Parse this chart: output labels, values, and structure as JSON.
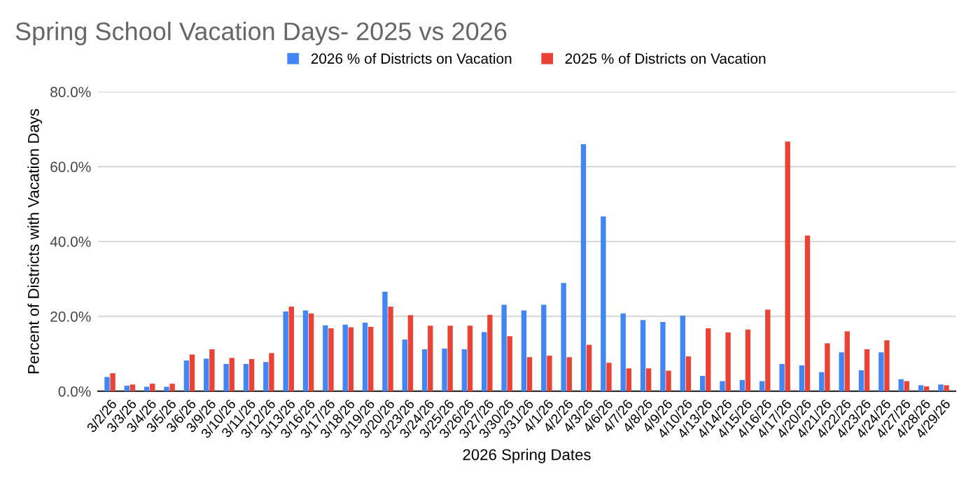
{
  "chart_data": {
    "type": "bar",
    "title": "Spring School Vacation Days- 2025 vs 2026",
    "xlabel": "2026 Spring Dates",
    "ylabel": "Percent of Districts with Vacation Days",
    "categories": [
      "3/2/26",
      "3/3/26",
      "3/4/26",
      "3/5/26",
      "3/6/26",
      "3/9/26",
      "3/10/26",
      "3/11/26",
      "3/12/26",
      "3/13/26",
      "3/16/26",
      "3/17/26",
      "3/18/26",
      "3/19/26",
      "3/20/26",
      "3/23/26",
      "3/24/26",
      "3/25/26",
      "3/26/26",
      "3/27/26",
      "3/30/26",
      "3/31/26",
      "4/1/26",
      "4/2/26",
      "4/3/26",
      "4/6/26",
      "4/7/26",
      "4/8/26",
      "4/9/26",
      "4/10/26",
      "4/13/26",
      "4/14/26",
      "4/15/26",
      "4/16/26",
      "4/17/26",
      "4/20/26",
      "4/21/26",
      "4/22/26",
      "4/23/26",
      "4/24/26",
      "4/27/26",
      "4/28/26",
      "4/29/26"
    ],
    "series": [
      {
        "name": "2026 % of Districts on Vacation",
        "color": "#4285f4",
        "values": [
          3.8,
          1.5,
          1.2,
          1.2,
          8.2,
          8.7,
          7.3,
          7.3,
          7.8,
          21.3,
          21.6,
          17.6,
          17.8,
          18.3,
          26.6,
          13.8,
          11.2,
          11.4,
          11.2,
          15.8,
          23.1,
          21.6,
          23.1,
          28.9,
          66,
          46.7,
          20.8,
          19,
          18.5,
          20.2,
          4.1,
          2.7,
          3,
          2.7,
          7.3,
          6.9,
          5.1,
          10.4,
          5.6,
          10.4,
          3.2,
          1.6,
          1.8
        ]
      },
      {
        "name": "2025 % of Districts on Vacation",
        "color": "#ea4335",
        "values": [
          4.8,
          1.8,
          2,
          2,
          9.8,
          11.2,
          8.9,
          8.6,
          10.2,
          22.6,
          20.8,
          16.8,
          17.1,
          17.2,
          22.6,
          20.3,
          17.5,
          17.5,
          17.5,
          20.4,
          14.7,
          9.1,
          9.5,
          9.1,
          12.4,
          7.6,
          6.1,
          6.1,
          5.5,
          9.3,
          16.8,
          15.7,
          16.5,
          21.8,
          66.7,
          41.6,
          12.8,
          16,
          11.2,
          13.6,
          2.7,
          1.3,
          1.6
        ]
      }
    ],
    "ylim": [
      0,
      80
    ],
    "yticks": [
      {
        "value": 0,
        "label": "0.0%"
      },
      {
        "value": 20,
        "label": "20.0%"
      },
      {
        "value": 40,
        "label": "40.0%"
      },
      {
        "value": 60,
        "label": "60.0%"
      },
      {
        "value": 80,
        "label": "80.0%"
      }
    ],
    "grid": "y",
    "legend": "top"
  }
}
